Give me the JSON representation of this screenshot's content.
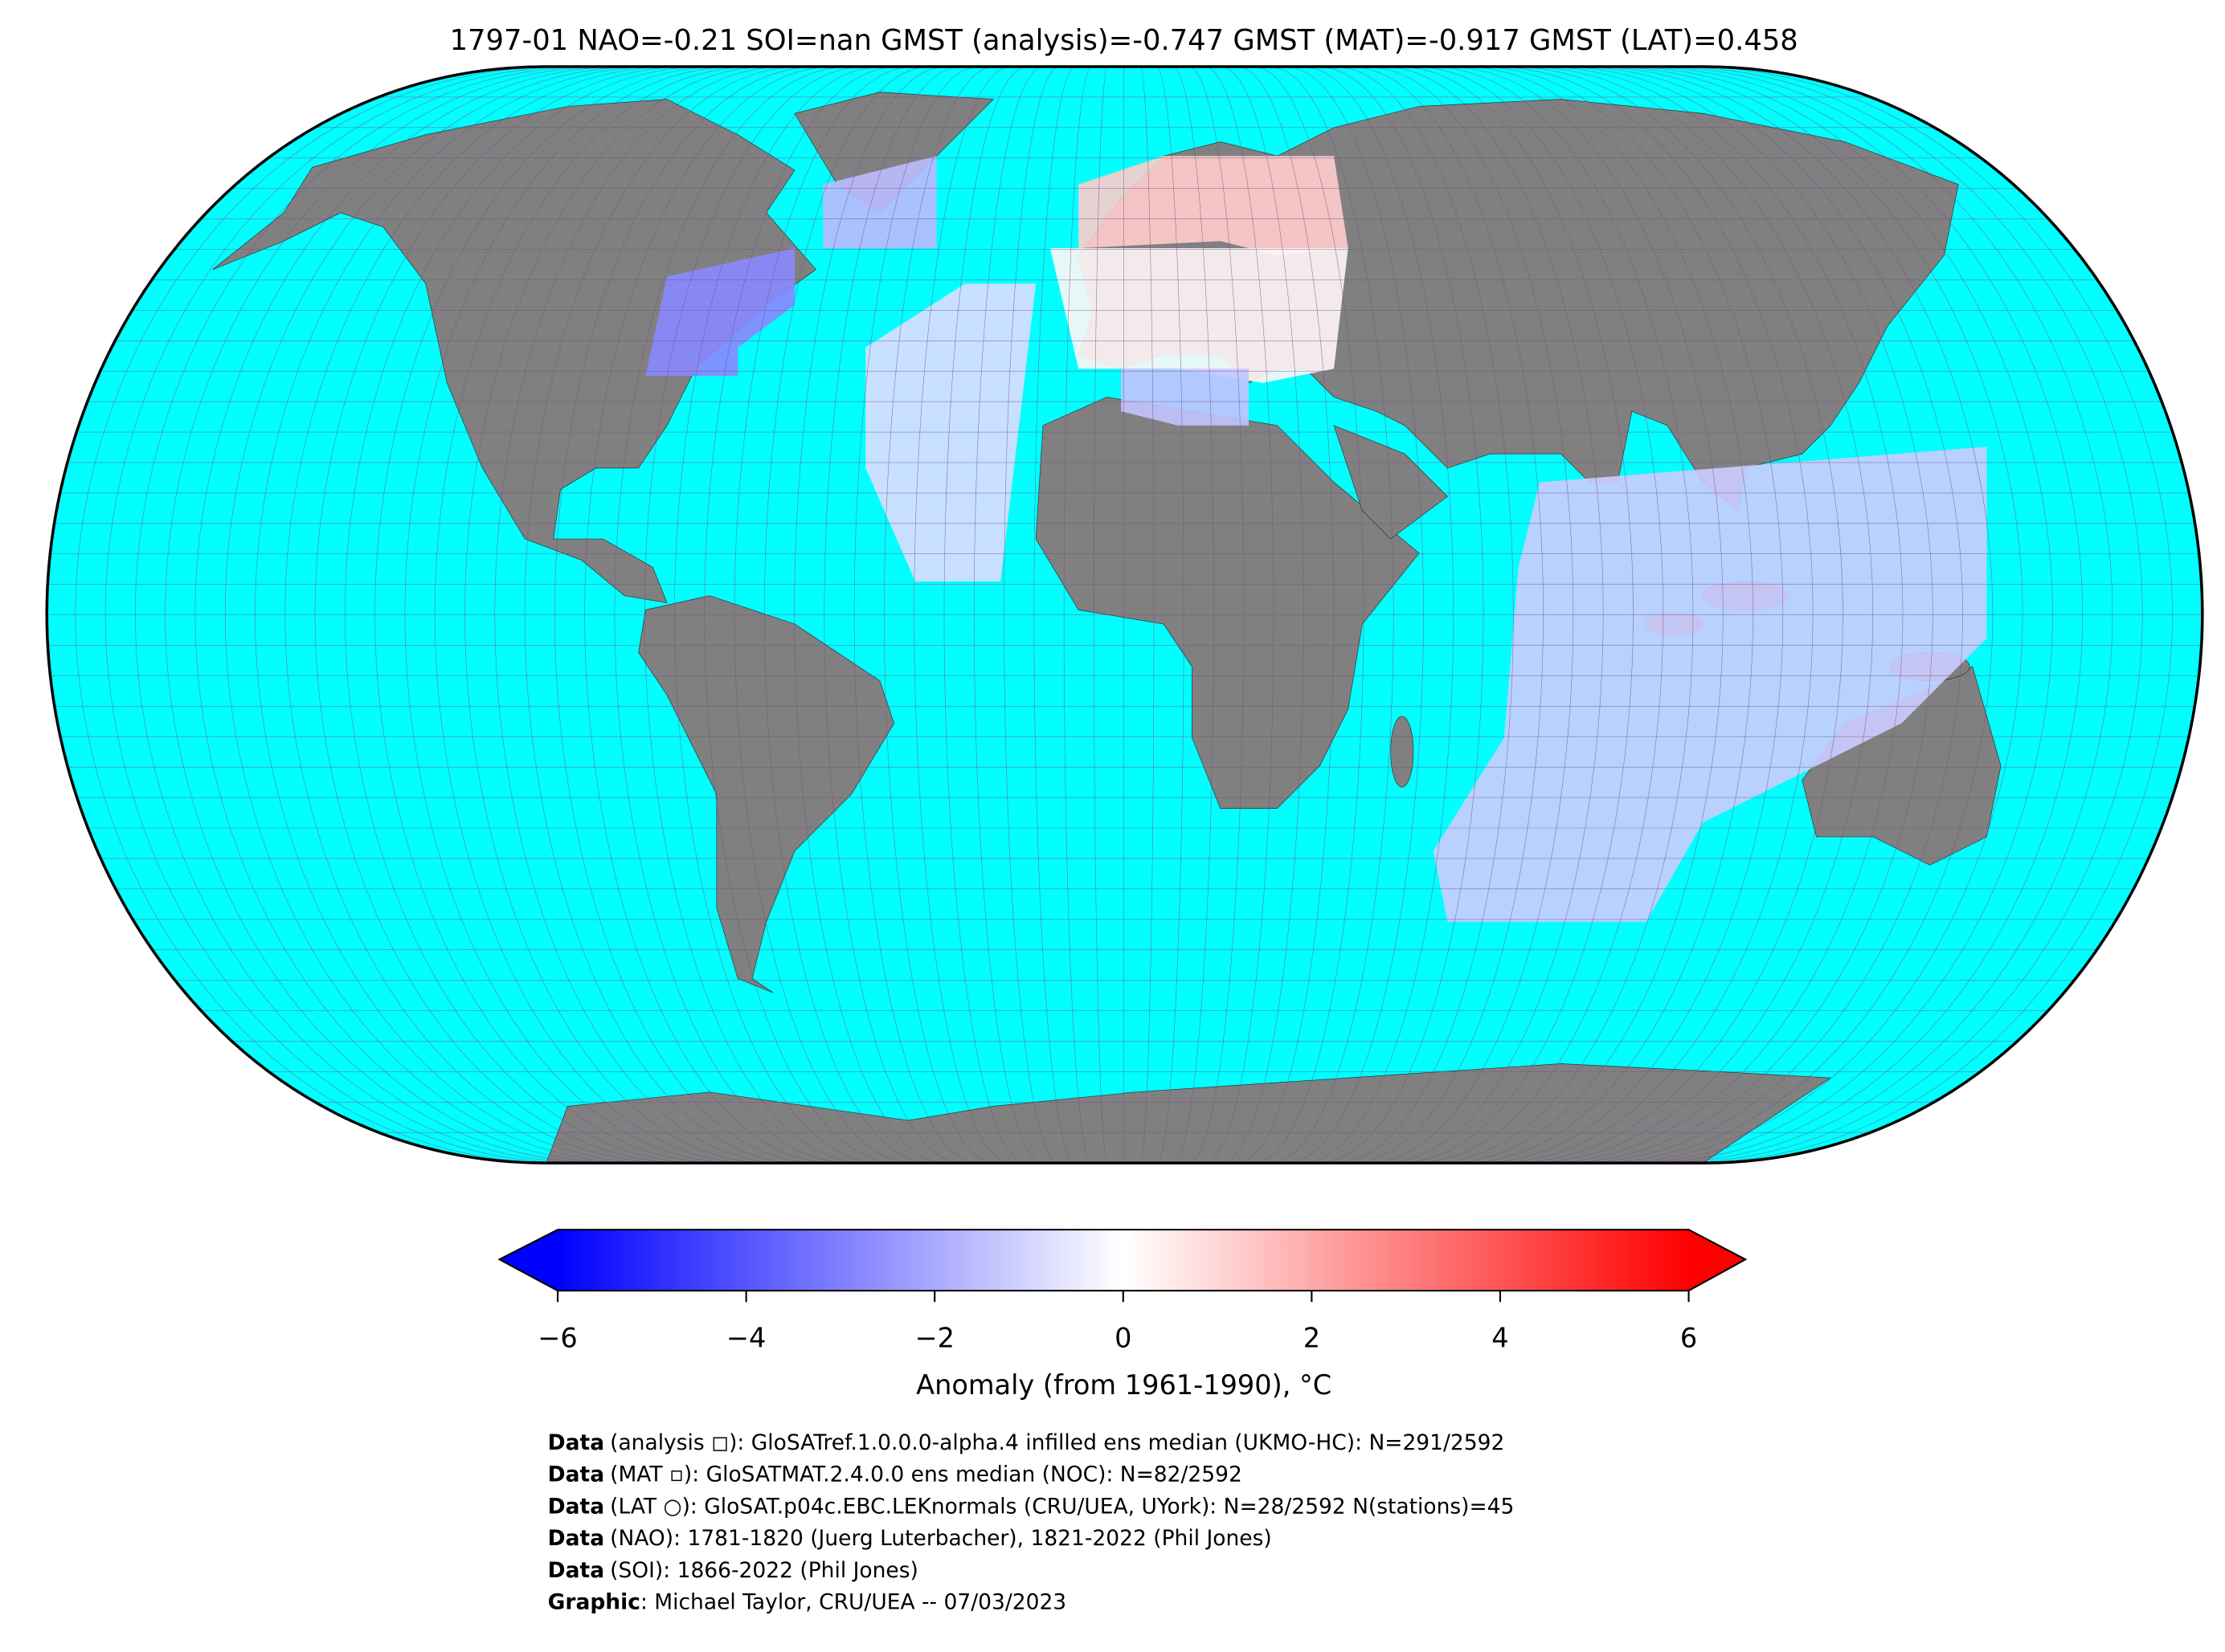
{
  "title": "1797-01 NAO=-0.21 SOI=nan GMST (analysis)=-0.747 GMST (MAT)=-0.917 GMST (LAT)=0.458",
  "colorbar": {
    "label": "Anomaly (from 1961-1990), °C",
    "lim": [
      -6,
      6
    ],
    "ticks": [
      {
        "value": -6,
        "label": "−6"
      },
      {
        "value": -4,
        "label": "−4"
      },
      {
        "value": -2,
        "label": "−2"
      },
      0,
      2,
      4,
      6
    ],
    "colors": [
      "#0000ff",
      "#ffffff",
      "#ff0000"
    ]
  },
  "anomaly_cells": [
    -2.8,
    -1.6,
    -0.8,
    1.2,
    0.2,
    -1.4,
    -1.2
  ],
  "credits": [
    {
      "bold": "Data",
      "text": "(analysis ◻): GloSATref.1.0.0.0-alpha.4 infilled ens median (UKMO-HC): N=291/2592"
    },
    {
      "bold": "Data",
      "text": "(MAT ▫): GloSATMAT.2.4.0.0 ens median (NOC): N=82/2592"
    },
    {
      "bold": "Data",
      "text": "(LAT ○): GloSAT.p04c.EBC.LEKnormals (CRU/UEA, UYork): N=28/2592 N(stations)=45"
    },
    {
      "bold": "Data",
      "text": "(NAO): 1781-1820 (Juerg Luterbacher), 1821-2022 (Phil Jones)"
    },
    {
      "bold": "Data",
      "text": "(SOI): 1866-2022 (Phil Jones)"
    },
    {
      "bold": "Graphic",
      "text": ": Michael Taylor, CRU/UEA -- 07/03/2023"
    }
  ]
}
